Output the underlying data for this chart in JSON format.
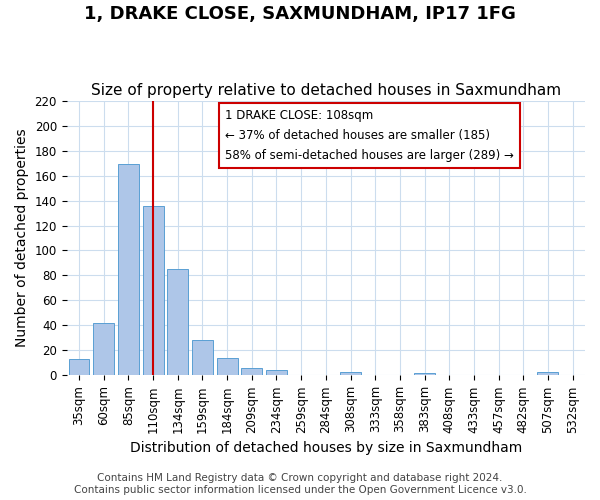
{
  "title": "1, DRAKE CLOSE, SAXMUNDHAM, IP17 1FG",
  "subtitle": "Size of property relative to detached houses in Saxmundham",
  "xlabel": "Distribution of detached houses by size in Saxmundham",
  "ylabel": "Number of detached properties",
  "bar_labels": [
    "35sqm",
    "60sqm",
    "85sqm",
    "110sqm",
    "134sqm",
    "159sqm",
    "184sqm",
    "209sqm",
    "234sqm",
    "259sqm",
    "284sqm",
    "308sqm",
    "333sqm",
    "358sqm",
    "383sqm",
    "408sqm",
    "433sqm",
    "457sqm",
    "482sqm",
    "507sqm",
    "532sqm"
  ],
  "bar_values": [
    13,
    42,
    169,
    136,
    85,
    28,
    14,
    6,
    4,
    0,
    0,
    3,
    0,
    0,
    2,
    0,
    0,
    0,
    0,
    3,
    0
  ],
  "bar_color": "#aec6e8",
  "bar_edge_color": "#5a9fd4",
  "vline_x": 3,
  "vline_color": "#cc0000",
  "ylim": [
    0,
    220
  ],
  "yticks": [
    0,
    20,
    40,
    60,
    80,
    100,
    120,
    140,
    160,
    180,
    200,
    220
  ],
  "annotation_title": "1 DRAKE CLOSE: 108sqm",
  "annotation_line1": "← 37% of detached houses are smaller (185)",
  "annotation_line2": "58% of semi-detached houses are larger (289) →",
  "annotation_box_color": "#ffffff",
  "annotation_box_edge": "#cc0000",
  "footer1": "Contains HM Land Registry data © Crown copyright and database right 2024.",
  "footer2": "Contains public sector information licensed under the Open Government Licence v3.0.",
  "bg_color": "#ffffff",
  "grid_color": "#ccddee",
  "title_fontsize": 13,
  "subtitle_fontsize": 11,
  "axis_label_fontsize": 10,
  "tick_fontsize": 8.5,
  "footer_fontsize": 7.5
}
